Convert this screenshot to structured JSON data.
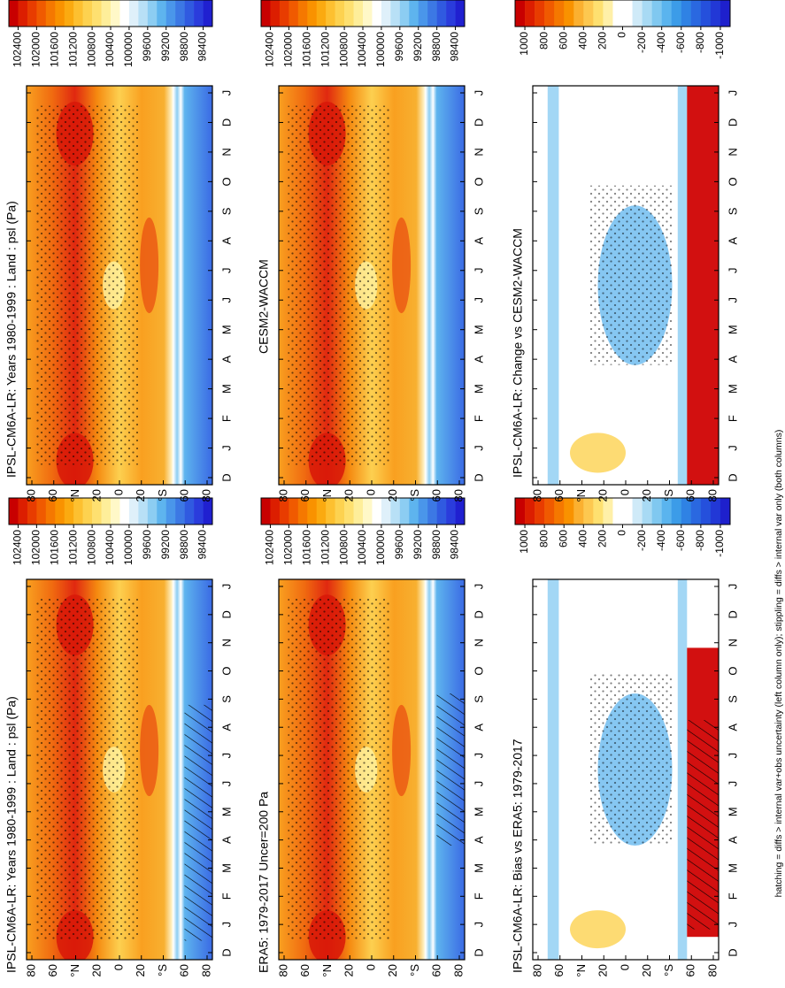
{
  "figure": {
    "months": [
      "D",
      "J",
      "F",
      "M",
      "A",
      "M",
      "J",
      "J",
      "A",
      "S",
      "O",
      "N",
      "D",
      "J"
    ],
    "lat_labels": [
      "80",
      "60",
      "°N",
      "20",
      "0",
      "20",
      "°S",
      "60",
      "80"
    ],
    "palettes": {
      "absolute": [
        "#c80000",
        "#dc1e00",
        "#e83c00",
        "#f05a00",
        "#f57800",
        "#f99200",
        "#fbaa10",
        "#fdc030",
        "#fdd250",
        "#fee070",
        "#feee9a",
        "#fff8c8",
        "#ffffff",
        "#dff0fa",
        "#b8e0f6",
        "#8ccdf2",
        "#5eb4ee",
        "#4a96ea",
        "#3c78e4",
        "#305ae0",
        "#2a3cdc",
        "#2020d0"
      ],
      "difference": [
        "#c80000",
        "#dc1e00",
        "#e83c00",
        "#f05a00",
        "#f57800",
        "#f99200",
        "#fbb030",
        "#fdc850",
        "#fee070",
        "#fff0a8",
        "#ffffff",
        "#ffffff",
        "#cfeaf8",
        "#a8daf4",
        "#80c8f0",
        "#5ab4ee",
        "#3c9ce8",
        "#2f82e4",
        "#2a68e0",
        "#2550dc",
        "#2238d6",
        "#1e20cc"
      ]
    },
    "panels": [
      {
        "title": "IPSL-CM6A-LR: Years 1980-1999 : Land : psl (Pa)",
        "palette": "absolute",
        "colorbar_ticks": [
          102400,
          102000,
          101600,
          101200,
          100800,
          100400,
          100000,
          99600,
          99200,
          98800,
          98400
        ]
      },
      {
        "title": "ERA5: 1979-2017 Uncer=200 Pa",
        "palette": "absolute",
        "colorbar_ticks": [
          102400,
          102000,
          101600,
          101200,
          100800,
          100400,
          100000,
          99600,
          99200,
          98800,
          98400
        ]
      },
      {
        "title": "IPSL-CM6A-LR: Bias vs ERA5: 1979-2017",
        "palette": "difference",
        "colorbar_ticks": [
          1000,
          800,
          600,
          400,
          200,
          0,
          -200,
          -400,
          -600,
          -800,
          -1000
        ]
      },
      {
        "title": "IPSL-CM6A-LR: Years 1980-1999 : Land : psl (Pa)",
        "palette": "absolute",
        "colorbar_ticks": [
          102400,
          102000,
          101600,
          101200,
          100800,
          100400,
          100000,
          99600,
          99200,
          98800,
          98400
        ]
      },
      {
        "title": "CESM2-WACCM",
        "palette": "absolute",
        "colorbar_ticks": [
          102400,
          102000,
          101600,
          101200,
          100800,
          100400,
          100000,
          99600,
          99200,
          98800,
          98400
        ]
      },
      {
        "title": "IPSL-CM6A-LR: Change vs CESM2-WACCM",
        "palette": "difference",
        "colorbar_ticks": [
          1000,
          800,
          600,
          400,
          200,
          0,
          -200,
          -400,
          -600,
          -800,
          -1000
        ]
      }
    ],
    "footnote": "hatching = diffs > internal var+obs uncertainty (left column only); stippling = diffs > internal var only (both columns)"
  }
}
